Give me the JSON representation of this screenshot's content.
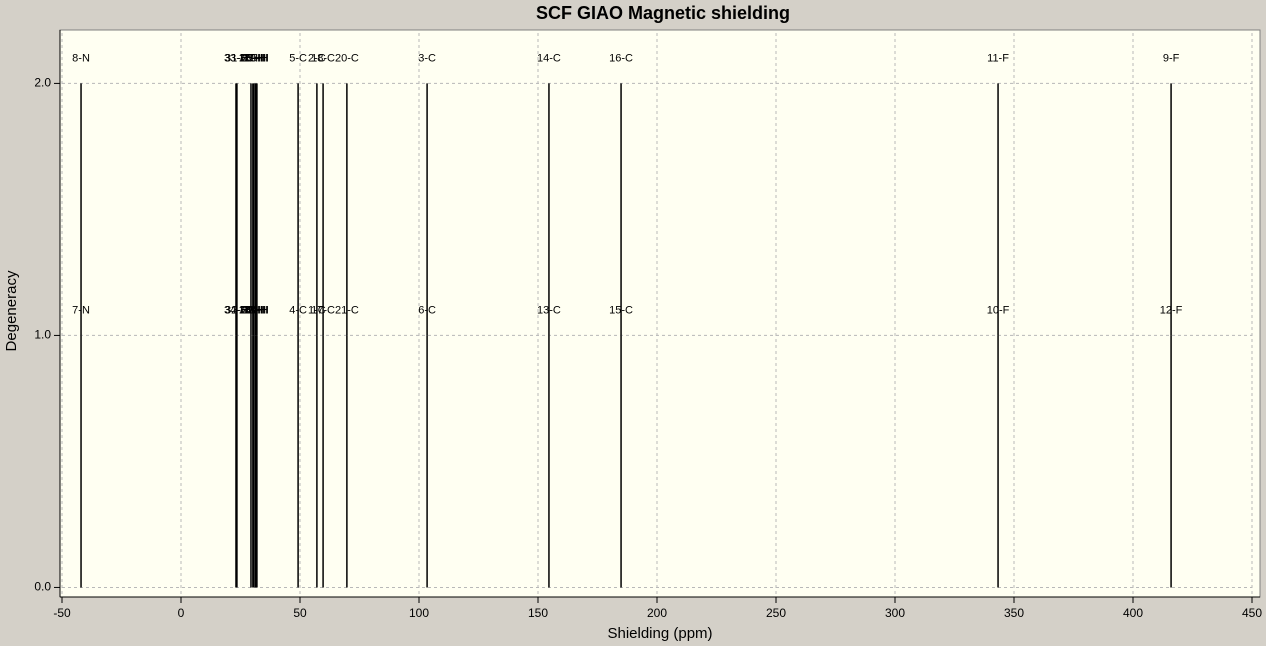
{
  "chart_data": {
    "type": "stick",
    "title": "SCF GIAO Magnetic shielding",
    "x_label": "Shielding (ppm)",
    "y_label": "Degeneracy",
    "labels": [
      "7-N",
      "8-N",
      "34-H",
      "33-H",
      "32-H",
      "31-H",
      "24-H",
      "25-H",
      "22-H",
      "23-H",
      "26-H",
      "27-H",
      "28-H",
      "29-H",
      "30-H",
      "35-H",
      "4-C",
      "5-C",
      "1-C",
      "2-C",
      "17-C",
      "18-C",
      "21-C",
      "20-C",
      "6-C",
      "3-C",
      "13-C",
      "14-C",
      "15-C",
      "16-C",
      "10-F",
      "11-F",
      "12-F",
      "9-F"
    ],
    "x": [
      -42.0,
      -42.0,
      23.1,
      23.1,
      23.5,
      23.5,
      29.4,
      29.4,
      30.2,
      30.2,
      30.7,
      30.7,
      31.4,
      31.4,
      31.9,
      31.9,
      49.2,
      49.2,
      57.1,
      57.1,
      59.7,
      59.7,
      69.7,
      69.7,
      103.4,
      103.4,
      154.6,
      154.6,
      184.9,
      184.9,
      343.3,
      343.3,
      416.0,
      416.0
    ],
    "values": [
      1,
      1,
      1,
      1,
      1,
      1,
      1,
      1,
      1,
      1,
      1,
      1,
      1,
      1,
      1,
      1,
      1,
      1,
      1,
      1,
      1,
      1,
      1,
      1,
      1,
      1,
      1,
      1,
      1,
      1,
      1,
      1,
      1,
      1
    ],
    "color": "#000000",
    "xlim": [
      -50,
      450
    ],
    "xticks": [
      -50,
      0,
      50,
      100,
      150,
      200,
      250,
      300,
      350,
      400,
      450
    ],
    "ylim": [
      -0.03,
      2.2
    ],
    "yticks": [
      {
        "value": 0,
        "label": "0.0"
      },
      {
        "value": 1,
        "label": "1.0"
      },
      {
        "value": 2,
        "label": "2.0"
      }
    ],
    "grid": true
  }
}
